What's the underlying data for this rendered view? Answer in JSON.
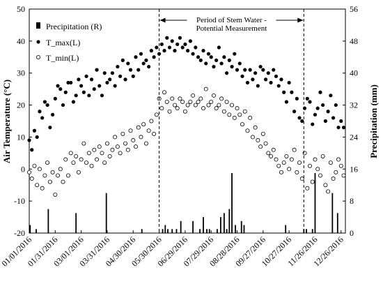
{
  "chart_data": {
    "type": "scatter",
    "title": "",
    "xlabel": "",
    "ylabel_left": "Air Temperature (°C)",
    "ylabel_right": "Precipitation (mm)",
    "xlim": [
      "2016-01-01",
      "2016-12-31"
    ],
    "ylim_left": [
      -20,
      50
    ],
    "ylim_right": [
      0,
      56
    ],
    "x_ticks": [
      "01/01/2016",
      "01/31/2016",
      "03/01/2016",
      "03/31/2016",
      "04/30/2016",
      "05/30/2016",
      "06/29/2016",
      "07/29/2016",
      "08/28/2016",
      "09/27/2016",
      "10/27/2016",
      "11/26/2016",
      "12/26/2016"
    ],
    "y_ticks_left": [
      -20,
      -10,
      0,
      10,
      20,
      30,
      40,
      50
    ],
    "y_ticks_right": [
      0,
      8,
      16,
      24,
      32,
      40,
      48,
      56
    ],
    "grid": false,
    "legend_position": "top-left",
    "legend": [
      "Precipitation (R)",
      "T_max(L)",
      "T_min(L)"
    ],
    "annotation": {
      "text_line1": "Period of Stem Water -",
      "text_line2": "Potential Measurement",
      "start": "2016-05-30",
      "end": "2016-11-13"
    },
    "series": [
      {
        "name": "T_max(L)",
        "axis": "left",
        "marker": "filled-circle",
        "x": [
          "2016-01-01",
          "2016-01-04",
          "2016-01-07",
          "2016-01-10",
          "2016-01-13",
          "2016-01-16",
          "2016-01-19",
          "2016-01-22",
          "2016-01-25",
          "2016-01-28",
          "2016-01-31",
          "2016-02-03",
          "2016-02-06",
          "2016-02-09",
          "2016-02-12",
          "2016-02-15",
          "2016-02-18",
          "2016-02-21",
          "2016-02-24",
          "2016-02-27",
          "2016-03-01",
          "2016-03-04",
          "2016-03-07",
          "2016-03-10",
          "2016-03-13",
          "2016-03-16",
          "2016-03-19",
          "2016-03-22",
          "2016-03-25",
          "2016-03-28",
          "2016-03-31",
          "2016-04-03",
          "2016-04-06",
          "2016-04-09",
          "2016-04-12",
          "2016-04-15",
          "2016-04-18",
          "2016-04-21",
          "2016-04-24",
          "2016-04-27",
          "2016-04-30",
          "2016-05-03",
          "2016-05-06",
          "2016-05-09",
          "2016-05-12",
          "2016-05-15",
          "2016-05-18",
          "2016-05-21",
          "2016-05-24",
          "2016-05-27",
          "2016-05-30",
          "2016-06-02",
          "2016-06-05",
          "2016-06-08",
          "2016-06-11",
          "2016-06-14",
          "2016-06-17",
          "2016-06-20",
          "2016-06-23",
          "2016-06-26",
          "2016-06-29",
          "2016-07-02",
          "2016-07-05",
          "2016-07-08",
          "2016-07-11",
          "2016-07-14",
          "2016-07-17",
          "2016-07-20",
          "2016-07-23",
          "2016-07-26",
          "2016-07-29",
          "2016-08-01",
          "2016-08-04",
          "2016-08-07",
          "2016-08-10",
          "2016-08-13",
          "2016-08-16",
          "2016-08-19",
          "2016-08-22",
          "2016-08-25",
          "2016-08-28",
          "2016-08-31",
          "2016-09-03",
          "2016-09-06",
          "2016-09-09",
          "2016-09-12",
          "2016-09-15",
          "2016-09-18",
          "2016-09-21",
          "2016-09-24",
          "2016-09-27",
          "2016-09-30",
          "2016-10-03",
          "2016-10-06",
          "2016-10-09",
          "2016-10-12",
          "2016-10-15",
          "2016-10-18",
          "2016-10-21",
          "2016-10-24",
          "2016-10-27",
          "2016-10-30",
          "2016-11-02",
          "2016-11-05",
          "2016-11-08",
          "2016-11-11",
          "2016-11-14",
          "2016-11-17",
          "2016-11-20",
          "2016-11-23",
          "2016-11-26",
          "2016-11-29",
          "2016-12-02",
          "2016-12-05",
          "2016-12-08",
          "2016-12-11",
          "2016-12-14",
          "2016-12-17",
          "2016-12-20",
          "2016-12-23",
          "2016-12-26",
          "2016-12-29"
        ],
        "values": [
          9,
          6,
          12,
          10,
          18,
          16,
          21,
          20,
          13,
          17,
          22,
          26,
          25,
          20,
          24,
          27,
          27,
          21,
          23,
          28,
          26,
          24,
          29,
          23,
          28,
          25,
          31,
          26,
          23,
          30,
          27,
          28,
          30,
          26,
          32,
          29,
          34,
          28,
          33,
          31,
          29,
          35,
          31,
          36,
          33,
          34,
          32,
          37,
          35,
          38,
          36,
          39,
          37,
          41,
          38,
          40,
          37,
          39,
          41,
          38,
          39,
          37,
          40,
          36,
          38,
          35,
          34,
          37,
          33,
          36,
          35,
          32,
          34,
          38,
          33,
          35,
          30,
          34,
          32,
          36,
          31,
          33,
          29,
          31,
          27,
          31,
          28,
          30,
          26,
          32,
          31,
          28,
          30,
          27,
          31,
          29,
          26,
          28,
          24,
          21,
          27,
          24,
          18,
          22,
          16,
          15,
          19,
          22,
          21,
          14,
          17,
          19,
          24,
          20,
          15,
          18,
          23,
          16,
          20,
          13,
          15,
          13
        ]
      },
      {
        "name": "T_min(L)",
        "axis": "left",
        "marker": "open-circle",
        "x": [
          "2016-01-01",
          "2016-01-04",
          "2016-01-07",
          "2016-01-10",
          "2016-01-13",
          "2016-01-16",
          "2016-01-19",
          "2016-01-22",
          "2016-01-25",
          "2016-01-28",
          "2016-01-31",
          "2016-02-03",
          "2016-02-06",
          "2016-02-09",
          "2016-02-12",
          "2016-02-15",
          "2016-02-18",
          "2016-02-21",
          "2016-02-24",
          "2016-02-27",
          "2016-03-01",
          "2016-03-04",
          "2016-03-07",
          "2016-03-10",
          "2016-03-13",
          "2016-03-16",
          "2016-03-19",
          "2016-03-22",
          "2016-03-25",
          "2016-03-28",
          "2016-03-31",
          "2016-04-03",
          "2016-04-06",
          "2016-04-09",
          "2016-04-12",
          "2016-04-15",
          "2016-04-18",
          "2016-04-21",
          "2016-04-24",
          "2016-04-27",
          "2016-04-30",
          "2016-05-03",
          "2016-05-06",
          "2016-05-09",
          "2016-05-12",
          "2016-05-15",
          "2016-05-18",
          "2016-05-21",
          "2016-05-24",
          "2016-05-27",
          "2016-05-30",
          "2016-06-02",
          "2016-06-05",
          "2016-06-08",
          "2016-06-11",
          "2016-06-14",
          "2016-06-17",
          "2016-06-20",
          "2016-06-23",
          "2016-06-26",
          "2016-06-29",
          "2016-07-02",
          "2016-07-05",
          "2016-07-08",
          "2016-07-11",
          "2016-07-14",
          "2016-07-17",
          "2016-07-20",
          "2016-07-23",
          "2016-07-26",
          "2016-07-29",
          "2016-08-01",
          "2016-08-04",
          "2016-08-07",
          "2016-08-10",
          "2016-08-13",
          "2016-08-16",
          "2016-08-19",
          "2016-08-22",
          "2016-08-25",
          "2016-08-28",
          "2016-08-31",
          "2016-09-03",
          "2016-09-06",
          "2016-09-09",
          "2016-09-12",
          "2016-09-15",
          "2016-09-18",
          "2016-09-21",
          "2016-09-24",
          "2016-09-27",
          "2016-09-30",
          "2016-10-03",
          "2016-10-06",
          "2016-10-09",
          "2016-10-12",
          "2016-10-15",
          "2016-10-18",
          "2016-10-21",
          "2016-10-24",
          "2016-10-27",
          "2016-10-30",
          "2016-11-02",
          "2016-11-05",
          "2016-11-08",
          "2016-11-11",
          "2016-11-14",
          "2016-11-17",
          "2016-11-20",
          "2016-11-23",
          "2016-11-26",
          "2016-11-29",
          "2016-12-02",
          "2016-12-05",
          "2016-12-08",
          "2016-12-11",
          "2016-12-14",
          "2016-12-17",
          "2016-12-20",
          "2016-12-23",
          "2016-12-26",
          "2016-12-29"
        ],
        "values": [
          -1,
          -3,
          1,
          -5,
          0,
          -6,
          -2,
          2,
          -4,
          -1,
          -8,
          -2,
          0,
          -4,
          3,
          -2,
          5,
          2,
          4,
          -1,
          3,
          8,
          2,
          5,
          1,
          6,
          3,
          7,
          5,
          2,
          8,
          4,
          6,
          10,
          7,
          5,
          11,
          8,
          6,
          12,
          9,
          7,
          13,
          10,
          14,
          8,
          12,
          15,
          11,
          17,
          22,
          19,
          24,
          21,
          18,
          22,
          20,
          19,
          22,
          21,
          18,
          20,
          21,
          23,
          20,
          21,
          22,
          19,
          25,
          20,
          21,
          23,
          19,
          20,
          22,
          18,
          21,
          17,
          20,
          16,
          19,
          17,
          14,
          18,
          12,
          16,
          10,
          13,
          9,
          7,
          11,
          8,
          5,
          4,
          6,
          3,
          1,
          -1,
          2,
          4,
          0,
          3,
          6,
          -1,
          2,
          -3,
          5,
          -6,
          1,
          -4,
          3,
          0,
          -2,
          4,
          -5,
          -7,
          2,
          -3,
          -1,
          3,
          1,
          -2
        ]
      },
      {
        "name": "Precipitation (R)",
        "axis": "right",
        "marker": "bar",
        "x": [
          "2016-01-02",
          "2016-01-09",
          "2016-01-23",
          "2016-02-24",
          "2016-03-30",
          "2016-05-10",
          "2016-06-03",
          "2016-06-06",
          "2016-06-09",
          "2016-06-14",
          "2016-06-19",
          "2016-06-24",
          "2016-07-08",
          "2016-07-16",
          "2016-07-20",
          "2016-07-24",
          "2016-07-27",
          "2016-08-05",
          "2016-08-09",
          "2016-08-13",
          "2016-08-16",
          "2016-08-19",
          "2016-08-22",
          "2016-08-26",
          "2016-09-02",
          "2016-09-05",
          "2016-10-23",
          "2016-11-13",
          "2016-11-16",
          "2016-11-23",
          "2016-11-26",
          "2016-12-16",
          "2016-12-22"
        ],
        "values": [
          2,
          1,
          6,
          5,
          10,
          1,
          1,
          2,
          1,
          1,
          1,
          3,
          3,
          1,
          4,
          1,
          1,
          1,
          4,
          5,
          1,
          6,
          15,
          2,
          3,
          2,
          2,
          1,
          1,
          1,
          15,
          10,
          5
        ]
      }
    ]
  }
}
